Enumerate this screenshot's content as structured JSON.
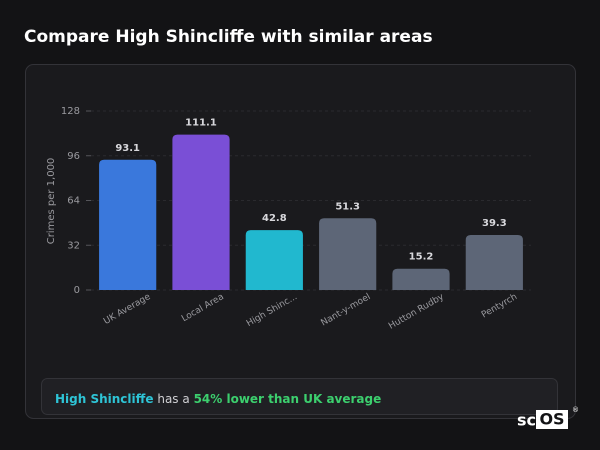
{
  "header": {
    "title": "Compare High Shincliffe with similar areas"
  },
  "chart_data": {
    "type": "bar",
    "ylabel": "Crimes per 1,000",
    "categories": [
      "UK Average",
      "Local Area",
      "High Shinc...",
      "Nant-y-moel",
      "Hutton Rudby",
      "Pentyrch"
    ],
    "values": [
      93.1,
      111.1,
      42.8,
      51.3,
      15.2,
      39.3
    ],
    "colors": [
      "#3a78dc",
      "#7a4fd6",
      "#21b8cf",
      "#5d6677",
      "#5d6677",
      "#5d6677"
    ],
    "ylim": [
      0,
      128
    ],
    "yticks": [
      0,
      32,
      64,
      96,
      128
    ],
    "grid": true
  },
  "footer": {
    "area": "High Shincliffe",
    "middle": "has a",
    "highlight": "54% lower than UK average"
  },
  "logo": {
    "prefix": "sc",
    "suffix": "OS",
    "mark": "®"
  }
}
